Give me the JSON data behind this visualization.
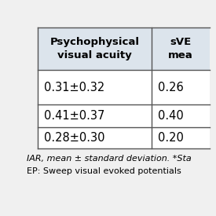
{
  "col1_header": "Psychophysical\nvisual acuity",
  "col2_header": "sVE\nmea",
  "rows": [
    {
      "col1": "0.31±0.32",
      "col2": "0.26"
    },
    {
      "col1": "0.41±0.37",
      "col2": "0.40"
    },
    {
      "col1": "0.28±0.30",
      "col2": "0.20"
    }
  ],
  "footer_lines": [
    "IAR, mean ± standard deviation. *Sta",
    "EP: Sweep visual evoked potentials"
  ],
  "bg_color": "#f0f0f0",
  "cell_bg": "#ffffff",
  "header_bg": "#dce4ec",
  "line_color": "#555555",
  "text_color": "#000000",
  "header_fontsize": 9.5,
  "cell_fontsize": 10.5,
  "footer_fontsize": 8.0
}
